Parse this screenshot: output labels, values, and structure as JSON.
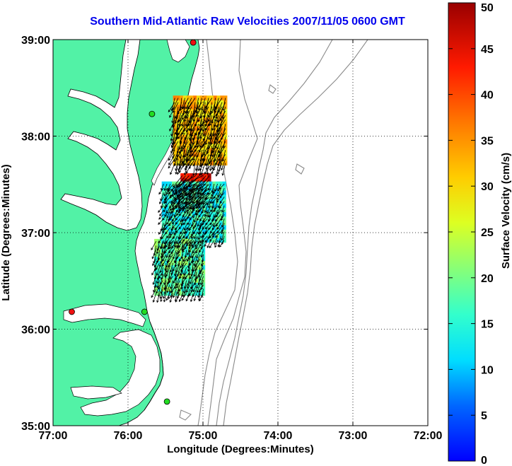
{
  "title": "Southern Mid-Atlantic Raw Velocities 2007/11/05 0600 GMT",
  "x_axis": {
    "label": "Longitude (Degrees:Minutes)",
    "ticks": [
      "77:00",
      "76:00",
      "75:00",
      "74:00",
      "73:00",
      "72:00"
    ]
  },
  "y_axis": {
    "label": "Latitude (Degrees:Minutes)",
    "ticks": [
      "39:00",
      "38:00",
      "37:00",
      "36:00",
      "35:00"
    ]
  },
  "colorbar": {
    "label": "Surface Velocity (cm/s)",
    "ticks": [
      "50",
      "45",
      "40",
      "35",
      "30",
      "25",
      "20",
      "15",
      "10",
      "5",
      "0"
    ],
    "min": 0,
    "max": 50
  },
  "colors": {
    "land": "#52f2a6",
    "title": "#0000ee",
    "isobath": "#8a8a8a",
    "station_green": "#22dd22",
    "station_red": "#ee1111"
  },
  "stations": [
    {
      "lon": -75.13,
      "lat": 38.97,
      "color": "red"
    },
    {
      "lon": -75.68,
      "lat": 38.23,
      "color": "green"
    },
    {
      "lon": -75.78,
      "lat": 36.18,
      "color": "green"
    },
    {
      "lon": -76.75,
      "lat": 36.18,
      "color": "red"
    },
    {
      "lon": -75.48,
      "lat": 35.25,
      "color": "green"
    }
  ],
  "chart_data": {
    "type": "heatmap",
    "title": "Southern Mid-Atlantic Raw Velocities 2007/11/05 0600 GMT",
    "xlabel": "Longitude (Degrees:Minutes)",
    "ylabel": "Latitude (Degrees:Minutes)",
    "xlim": [
      -77,
      -72
    ],
    "ylim": [
      35,
      39
    ],
    "grid": true,
    "colorbar_label": "Surface Velocity (cm/s)",
    "colorbar_range": [
      0,
      50
    ],
    "velocity_field_regions": [
      {
        "name_lon_range": [
          -75.4,
          -74.7
        ],
        "lat_range": [
          37.7,
          38.4
        ],
        "speed_cm_s": 32,
        "dir_deg": 200
      },
      {
        "name_lon_range": [
          -75.3,
          -74.9
        ],
        "lat_range": [
          37.3,
          37.6
        ],
        "speed_cm_s": 45,
        "dir_deg": 230
      },
      {
        "name_lon_range": [
          -75.55,
          -74.7
        ],
        "lat_range": [
          36.9,
          37.5
        ],
        "speed_cm_s": 15,
        "dir_deg": 210
      },
      {
        "name_lon_range": [
          -75.65,
          -75.0
        ],
        "lat_range": [
          36.35,
          36.9
        ],
        "speed_cm_s": 18,
        "dir_deg": 200
      }
    ]
  }
}
